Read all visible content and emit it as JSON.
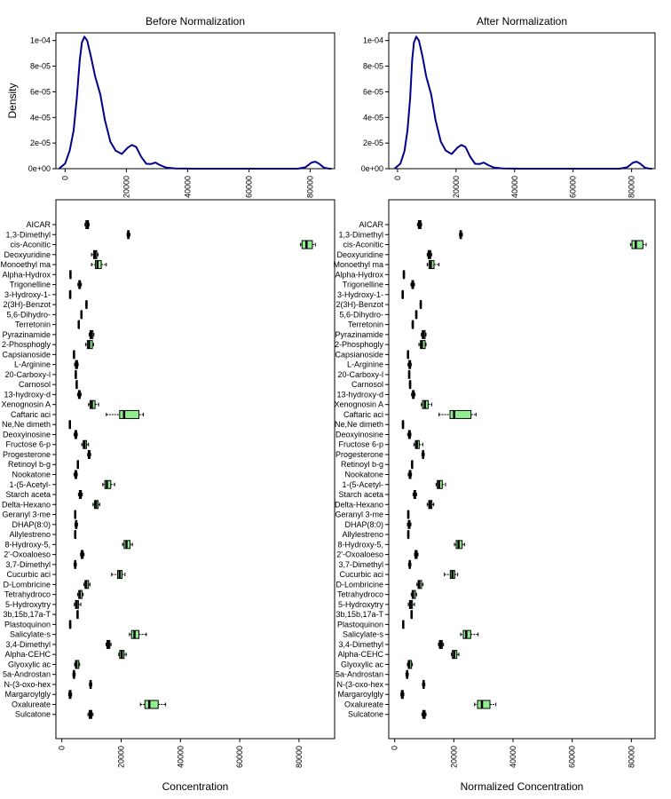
{
  "chart_data": [
    {
      "type": "line",
      "title": "Before Normalization",
      "xlabel": "",
      "ylabel": "Density",
      "xlim": [
        -3000,
        88000
      ],
      "ylim": [
        0,
        0.000106
      ],
      "x_ticks": [
        0,
        20000,
        40000,
        60000,
        80000
      ],
      "x_tick_labels": [
        "0",
        "20000",
        "40000",
        "60000",
        "80000"
      ],
      "y_ticks": [
        0,
        2e-05,
        4e-05,
        6e-05,
        8e-05,
        0.0001
      ],
      "y_tick_labels": [
        "0e+00",
        "2e-05",
        "4e-05",
        "6e-05",
        "8e-05",
        "1e-04"
      ],
      "line_color": "#00008B",
      "grid": false,
      "series": [
        {
          "x": [
            -2000,
            0,
            1500,
            2800,
            3800,
            4800,
            5500,
            6300,
            7200,
            8400,
            9800,
            11500,
            13000,
            14800,
            16500,
            18500,
            20500,
            21800,
            23200,
            24800,
            26500,
            28000,
            29500,
            31000,
            33000,
            36000,
            42000,
            60000,
            76000,
            78500,
            80500,
            81700,
            83000,
            84500,
            86000,
            87000
          ],
          "y": [
            0,
            4e-06,
            1.4e-05,
            3e-05,
            5.5e-05,
            8.5e-05,
            9.85e-05,
            0.000103,
            0.0001,
            8.8e-05,
            7.2e-05,
            5.8e-05,
            3.8e-05,
            2.1e-05,
            1.4e-05,
            1.15e-05,
            1.65e-05,
            1.85e-05,
            1.7e-05,
            9.5e-06,
            3.8e-06,
            3.6e-06,
            4.8e-06,
            2.8e-06,
            8e-07,
            2e-07,
            0,
            0,
            0,
            1.2e-06,
            4.8e-06,
            5.5e-06,
            3.8e-06,
            8e-07,
            1e-07,
            0
          ]
        }
      ]
    },
    {
      "type": "line",
      "title": "After Normalization",
      "xlabel": "",
      "ylabel": "",
      "xlim": [
        -3000,
        88000
      ],
      "ylim": [
        0,
        0.000106
      ],
      "x_ticks": [
        0,
        20000,
        40000,
        60000,
        80000
      ],
      "x_tick_labels": [
        "0",
        "20000",
        "40000",
        "60000",
        "80000"
      ],
      "y_ticks": [
        0,
        2e-05,
        4e-05,
        6e-05,
        8e-05,
        0.0001
      ],
      "y_tick_labels": [
        "0e+00",
        "2e-05",
        "4e-05",
        "6e-05",
        "8e-05",
        "1e-04"
      ],
      "line_color": "#00008B",
      "grid": false,
      "series": [
        {
          "x": [
            -1000,
            1000,
            2400,
            3400,
            4300,
            5000,
            5600,
            6400,
            7300,
            8500,
            9800,
            11500,
            13000,
            14800,
            16500,
            18500,
            20500,
            21800,
            23200,
            24800,
            26500,
            28000,
            29500,
            31000,
            33000,
            36000,
            42000,
            60000,
            76000,
            78500,
            80500,
            81700,
            83000,
            84500,
            86000,
            87000
          ],
          "y": [
            0,
            4e-06,
            1.4e-05,
            3e-05,
            5.5e-05,
            8.5e-05,
            9.85e-05,
            0.000103,
            0.0001,
            8.8e-05,
            7.2e-05,
            5.8e-05,
            3.8e-05,
            2.1e-05,
            1.4e-05,
            1.15e-05,
            1.65e-05,
            1.85e-05,
            1.7e-05,
            9.5e-06,
            3.8e-06,
            3.6e-06,
            4.8e-06,
            2.8e-06,
            8e-07,
            2e-07,
            0,
            0,
            0,
            1.2e-06,
            4.8e-06,
            5.5e-06,
            3.8e-06,
            8e-07,
            1e-07,
            0
          ]
        }
      ]
    },
    {
      "type": "box",
      "title": "",
      "xlabel": "Concentration",
      "ylabel": "",
      "xlim": [
        -2000,
        92000
      ],
      "x_ticks": [
        0,
        20000,
        40000,
        60000,
        80000
      ],
      "x_tick_labels": [
        "0",
        "20000",
        "40000",
        "60000",
        "80000"
      ],
      "box_color": "#90EE90",
      "grid": false,
      "categories": [
        "AICAR",
        "1,3-Dimethyl",
        "cis-Aconitic",
        "Deoxyuridine",
        "Monoethyl ma",
        "Alpha-Hydrox",
        "Trigonelline",
        "3-Hydroxy-1-",
        "2(3H)-Benzot",
        "5,6-Dihydro-",
        "Terretonin",
        "Pyrazinamide",
        "2-Phosphogly",
        "Capsianoside",
        "L-Arginine",
        "20-Carboxy-l",
        "Carnosol",
        "13-hydroxy-d",
        "Xenognosin A",
        "Caftaric aci",
        "Ne,Ne dimeth",
        "Deoxyinosine",
        "Fructose 6-p",
        "Progesterone",
        "Retinoyl b-g",
        "Nookatone",
        "1-(5-Acetyl-",
        "Starch aceta",
        "Delta-Hexano",
        "Geranyl 3-me",
        "DHAP(8:0)",
        "Allylestreno",
        "8-Hydroxy-5,",
        "2'-Oxoaloeso",
        "3,7-Dimethyl",
        "Cucurbic aci",
        "D-Lombricine",
        "Tetrahydroco",
        "5-Hydroxytry",
        "3b,15b,17a-T",
        "Plastoquinon",
        "Salicylate-s",
        "3,4-Dimethyl",
        "Alpha-CEHC",
        "Glyoxylic ac",
        "5a-Androstan",
        "N-(3-oxo-hex",
        "Margaroylgly",
        "Oxalureate",
        "Sulcatone"
      ],
      "stats": [
        [
          7800,
          8100,
          8600,
          9000,
          9200
        ],
        [
          22000,
          22200,
          22400,
          22700,
          23000
        ],
        [
          80500,
          81000,
          82500,
          84500,
          85500
        ],
        [
          10000,
          10700,
          11200,
          11800,
          12200
        ],
        [
          10000,
          11300,
          12000,
          13300,
          15000
        ],
        [
          2700,
          2800,
          2900,
          3000,
          3100
        ],
        [
          5400,
          5700,
          6000,
          6300,
          6600
        ],
        [
          2600,
          2700,
          2800,
          2900,
          3000
        ],
        [
          8100,
          8200,
          8300,
          8400,
          8500
        ],
        [
          6400,
          6500,
          6600,
          6700,
          6800
        ],
        [
          5500,
          5600,
          5700,
          5800,
          5900
        ],
        [
          9200,
          9500,
          9900,
          10500,
          10800
        ],
        [
          8000,
          8600,
          9200,
          10300,
          10700
        ],
        [
          3900,
          4000,
          4100,
          4200,
          4300
        ],
        [
          4300,
          4600,
          4900,
          5300,
          5500
        ],
        [
          4500,
          4600,
          4700,
          4800,
          4900
        ],
        [
          4800,
          4900,
          5000,
          5100,
          5200
        ],
        [
          5300,
          5600,
          5900,
          6200,
          6500
        ],
        [
          9000,
          9500,
          10100,
          11200,
          12400
        ],
        [
          15000,
          19500,
          21000,
          26000,
          27500
        ],
        [
          2500,
          2600,
          2700,
          2800,
          2900
        ],
        [
          4100,
          4400,
          4700,
          5000,
          5200
        ],
        [
          6700,
          7200,
          7600,
          8300,
          9000
        ],
        [
          8700,
          8900,
          9200,
          9500,
          9700
        ],
        [
          5200,
          5300,
          5400,
          5500,
          5600
        ],
        [
          4100,
          4400,
          4700,
          5000,
          5200
        ],
        [
          13800,
          14500,
          15200,
          16500,
          17800
        ],
        [
          5600,
          5900,
          6200,
          6600,
          6900
        ],
        [
          10500,
          11000,
          11500,
          12200,
          12800
        ],
        [
          4300,
          4400,
          4500,
          4600,
          4700
        ],
        [
          4400,
          4600,
          4800,
          5100,
          5300
        ],
        [
          4300,
          4400,
          4500,
          4600,
          4700
        ],
        [
          20500,
          21000,
          21800,
          23000,
          23800
        ],
        [
          6300,
          6500,
          6800,
          7200,
          7500
        ],
        [
          4100,
          4300,
          4500,
          4700,
          4900
        ],
        [
          16800,
          18800,
          19500,
          20300,
          21300
        ],
        [
          7400,
          7800,
          8200,
          9000,
          9500
        ],
        [
          5300,
          5700,
          6000,
          6800,
          7200
        ],
        [
          4200,
          4600,
          5000,
          5600,
          6400
        ],
        [
          5100,
          5200,
          5300,
          5400,
          5500
        ],
        [
          2600,
          2700,
          2800,
          2900,
          3000
        ],
        [
          22800,
          23500,
          24500,
          26000,
          28500
        ],
        [
          14900,
          15200,
          15700,
          16200,
          16600
        ],
        [
          19200,
          19500,
          20200,
          21000,
          21700
        ],
        [
          4300,
          4600,
          4900,
          5700,
          6000
        ],
        [
          3700,
          3900,
          4100,
          4300,
          4500
        ],
        [
          9300,
          9500,
          9700,
          9900,
          10100
        ],
        [
          2300,
          2500,
          2700,
          3100,
          3300
        ],
        [
          26500,
          28000,
          29500,
          32500,
          35000
        ],
        [
          8800,
          9200,
          9700,
          10100,
          10500
        ]
      ]
    },
    {
      "type": "box",
      "title": "",
      "xlabel": "Normalized Concentration",
      "ylabel": "",
      "xlim": [
        -2000,
        88000
      ],
      "x_ticks": [
        0,
        20000,
        40000,
        60000,
        80000
      ],
      "x_tick_labels": [
        "0",
        "20000",
        "40000",
        "60000",
        "80000"
      ],
      "box_color": "#90EE90",
      "grid": false,
      "categories": [
        "AICAR",
        "1,3-Dimethyl",
        "cis-Aconitic",
        "Deoxyuridine",
        "Monoethyl ma",
        "Alpha-Hydrox",
        "Trigonelline",
        "3-Hydroxy-1-",
        "2(3H)-Benzot",
        "5,6-Dihydro-",
        "Terretonin",
        "Pyrazinamide",
        "2-Phosphogly",
        "Capsianoside",
        "L-Arginine",
        "20-Carboxy-l",
        "Carnosol",
        "13-hydroxy-d",
        "Xenognosin A",
        "Caftaric aci",
        "Ne,Ne dimeth",
        "Deoxyinosine",
        "Fructose 6-p",
        "Progesterone",
        "Retinoyl b-g",
        "Nookatone",
        "1-(5-Acetyl-",
        "Starch aceta",
        "Delta-Hexano",
        "Geranyl 3-me",
        "DHAP(8:0)",
        "Allylestreno",
        "8-Hydroxy-5,",
        "2'-Oxoaloeso",
        "3,7-Dimethyl",
        "Cucurbic aci",
        "D-Lombricine",
        "Tetrahydroco",
        "5-Hydroxytry",
        "3b,15b,17a-T",
        "Plastoquinon",
        "Salicylate-s",
        "3,4-Dimethyl",
        "Alpha-CEHC",
        "Glyoxylic ac",
        "5a-Androstan",
        "N-(3-oxo-hex",
        "Margaroylgly",
        "Oxalureate",
        "Sulcatone"
      ],
      "stats": [
        [
          7700,
          8000,
          8400,
          8900,
          9100
        ],
        [
          21900,
          22100,
          22300,
          22600,
          22900
        ],
        [
          79700,
          80200,
          81500,
          83900,
          85000
        ],
        [
          11000,
          11300,
          11700,
          12200,
          12500
        ],
        [
          11000,
          11600,
          12200,
          13300,
          15000
        ],
        [
          2900,
          3000,
          3100,
          3200,
          3300
        ],
        [
          5500,
          5800,
          6100,
          6400,
          6700
        ],
        [
          2500,
          2600,
          2700,
          2800,
          2900
        ],
        [
          8600,
          8700,
          8800,
          8900,
          9000
        ],
        [
          7100,
          7200,
          7300,
          7400,
          7500
        ],
        [
          5900,
          6000,
          6100,
          6200,
          6300
        ],
        [
          9000,
          9300,
          9700,
          10300,
          10600
        ],
        [
          8200,
          8700,
          9200,
          10300,
          10600
        ],
        [
          4300,
          4400,
          4500,
          4600,
          4700
        ],
        [
          4500,
          4800,
          5100,
          5400,
          5600
        ],
        [
          4700,
          4800,
          4900,
          5000,
          5100
        ],
        [
          5000,
          5100,
          5200,
          5300,
          5400
        ],
        [
          5700,
          6000,
          6300,
          6600,
          6900
        ],
        [
          9000,
          9400,
          10200,
          11300,
          12500
        ],
        [
          15000,
          18700,
          20100,
          25800,
          27500
        ],
        [
          2600,
          2700,
          2800,
          2900,
          3000
        ],
        [
          4400,
          4700,
          5000,
          5300,
          5500
        ],
        [
          6500,
          7000,
          7500,
          8300,
          9500
        ],
        [
          9200,
          9400,
          9600,
          9800,
          10000
        ],
        [
          5700,
          5800,
          5900,
          6000,
          6100
        ],
        [
          4600,
          4900,
          5200,
          5500,
          5700
        ],
        [
          14000,
          14400,
          15000,
          16100,
          17200
        ],
        [
          6200,
          6500,
          6800,
          7100,
          7400
        ],
        [
          11000,
          11500,
          12000,
          12600,
          13200
        ],
        [
          4400,
          4500,
          4600,
          4700,
          4800
        ],
        [
          4300,
          4600,
          4900,
          5200,
          5500
        ],
        [
          4400,
          4500,
          4600,
          4700,
          4800
        ],
        [
          20200,
          20800,
          21600,
          22800,
          23600
        ],
        [
          6700,
          6900,
          7200,
          7600,
          7900
        ],
        [
          4700,
          4900,
          5100,
          5300,
          5500
        ],
        [
          16800,
          18800,
          19500,
          20300,
          21300
        ],
        [
          7500,
          7900,
          8300,
          9100,
          9600
        ],
        [
          5600,
          5900,
          6200,
          7000,
          7400
        ],
        [
          4600,
          5000,
          5400,
          6000,
          6700
        ],
        [
          5500,
          5600,
          5700,
          5800,
          5900
        ],
        [
          2700,
          2800,
          2900,
          3000,
          3100
        ],
        [
          22300,
          23200,
          24200,
          25700,
          28200
        ],
        [
          14800,
          15100,
          15600,
          16100,
          16500
        ],
        [
          19200,
          19500,
          20100,
          21000,
          21700
        ],
        [
          4300,
          4600,
          4900,
          5700,
          6000
        ],
        [
          3800,
          4000,
          4200,
          4400,
          4600
        ],
        [
          9400,
          9600,
          9800,
          10000,
          10200
        ],
        [
          2100,
          2300,
          2500,
          2900,
          3100
        ],
        [
          27000,
          28000,
          29500,
          32200,
          34200
        ],
        [
          9200,
          9500,
          9900,
          10300,
          10600
        ]
      ]
    }
  ]
}
